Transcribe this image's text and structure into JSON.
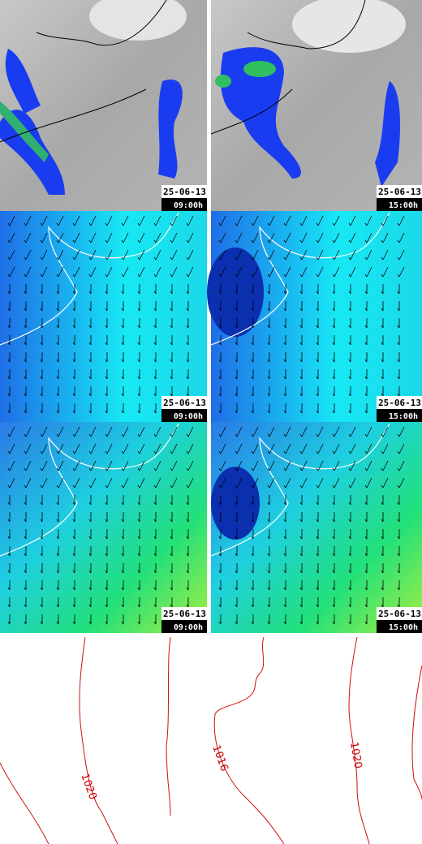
{
  "panels": [
    {
      "date": "25-06-13",
      "time": "09:00h"
    },
    {
      "date": "25-06-13",
      "time": "15:00h"
    },
    {
      "date": "25-06-13",
      "time": "09:00h"
    },
    {
      "date": "25-06-13",
      "time": "15:00h"
    },
    {
      "date": "25-06-13",
      "time": "09:00h"
    },
    {
      "date": "25-06-13",
      "time": "15:00h"
    }
  ],
  "isobars": [
    {
      "label": "1020"
    },
    {
      "label": "1016"
    },
    {
      "label": "1020"
    }
  ]
}
